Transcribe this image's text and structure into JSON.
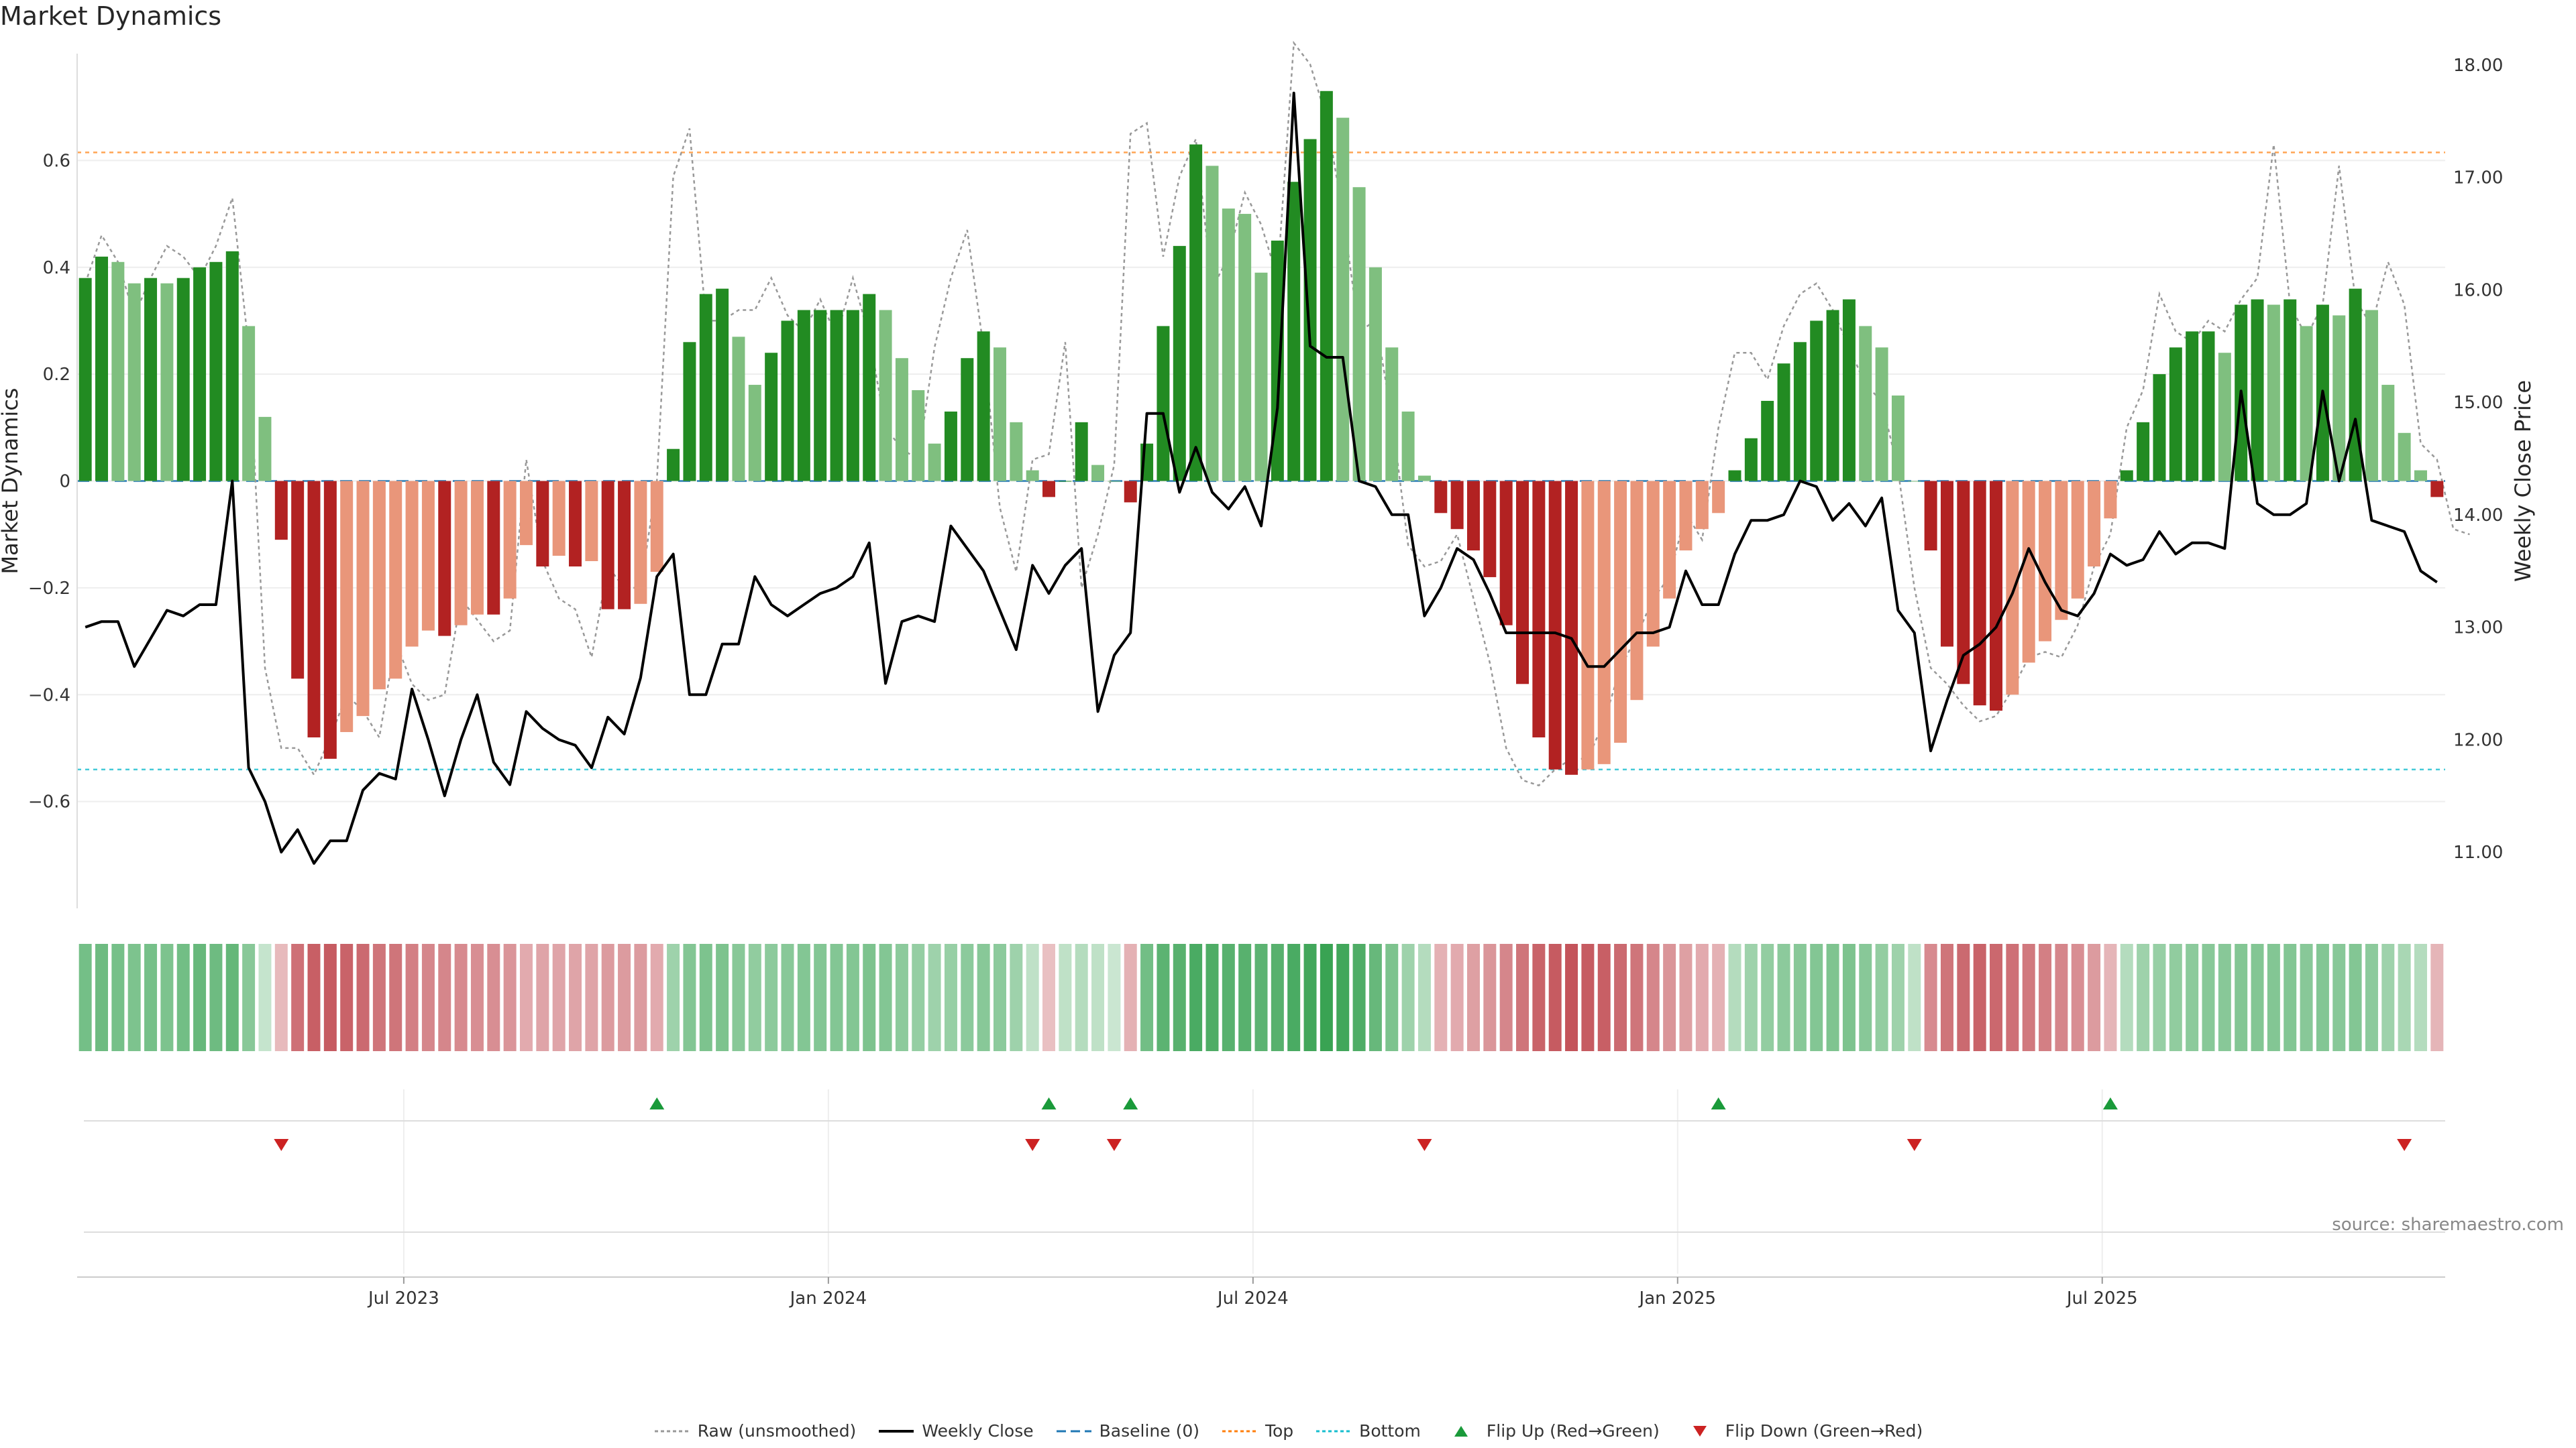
{
  "title": "Market Dynamics",
  "source": "source: sharemaestro.com",
  "colors": {
    "strong_green": "#228B22",
    "light_green": "#7FBF7F",
    "strong_red": "#B22222",
    "light_red": "#E9967A",
    "close_line": "#000000",
    "raw_line": "#999999",
    "baseline": "#1f77b4",
    "top": "#ff7f0e",
    "bottom": "#17becf",
    "flip_up": "#1a9a3a",
    "flip_down": "#cc2222"
  },
  "legend": [
    {
      "key": "raw",
      "label": "Raw (unsmoothed)"
    },
    {
      "key": "close",
      "label": "Weekly Close"
    },
    {
      "key": "baseline",
      "label": "Baseline (0)"
    },
    {
      "key": "top",
      "label": "Top"
    },
    {
      "key": "bottom",
      "label": "Bottom"
    },
    {
      "key": "flip_up",
      "label": "Flip Up (Red→Green)"
    },
    {
      "key": "flip_down",
      "label": "Flip Down (Green→Red)"
    }
  ],
  "chart_data": {
    "type": "bar",
    "ylabel": "Market Dynamics",
    "y2label": "Weekly Close Price",
    "ylim": [
      -0.8,
      0.8
    ],
    "y2lim": [
      10.5,
      18.1
    ],
    "yticks": [
      -0.6,
      -0.4,
      -0.2,
      0,
      0.2,
      0.4,
      0.6
    ],
    "yticklabels": [
      "−0.6",
      "−0.4",
      "−0.2",
      "0",
      "0.2",
      "0.4",
      "0.6"
    ],
    "y2ticks": [
      11,
      12,
      13,
      14,
      15,
      16,
      17,
      18
    ],
    "y2ticklabels": [
      "11.00",
      "12.00",
      "13.00",
      "14.00",
      "15.00",
      "16.00",
      "17.00",
      "18.00"
    ],
    "xticklabels": [
      "Jul 2023",
      "Jan 2024",
      "Jul 2024",
      "Jan 2025",
      "Jul 2025"
    ],
    "xtick_weeks": [
      20,
      46,
      72,
      98,
      124
    ],
    "top_level": 0.615,
    "bottom_level": -0.54,
    "baseline": 0,
    "values": [
      0.38,
      0.42,
      0.41,
      0.37,
      0.38,
      0.37,
      0.38,
      0.4,
      0.41,
      0.43,
      0.29,
      0.12,
      -0.11,
      -0.37,
      -0.48,
      -0.52,
      -0.47,
      -0.44,
      -0.39,
      -0.37,
      -0.31,
      -0.28,
      -0.29,
      -0.27,
      -0.25,
      -0.25,
      -0.22,
      -0.12,
      -0.16,
      -0.14,
      -0.16,
      -0.15,
      -0.24,
      -0.24,
      -0.23,
      -0.17,
      0.06,
      0.26,
      0.35,
      0.36,
      0.27,
      0.18,
      0.24,
      0.3,
      0.32,
      0.32,
      0.32,
      0.32,
      0.35,
      0.32,
      0.23,
      0.17,
      0.07,
      0.13,
      0.23,
      0.28,
      0.25,
      0.11,
      0.02,
      -0.03,
      0.0,
      0.11,
      0.03,
      0.0,
      -0.04,
      0.07,
      0.29,
      0.44,
      0.63,
      0.59,
      0.51,
      0.5,
      0.39,
      0.45,
      0.56,
      0.64,
      0.73,
      0.68,
      0.55,
      0.4,
      0.25,
      0.13,
      0.01,
      -0.06,
      -0.09,
      -0.13,
      -0.18,
      -0.27,
      -0.38,
      -0.48,
      -0.54,
      -0.55,
      -0.54,
      -0.53,
      -0.49,
      -0.41,
      -0.31,
      -0.22,
      -0.13,
      -0.09,
      -0.06,
      0.02,
      0.08,
      0.15,
      0.22,
      0.26,
      0.3,
      0.32,
      0.34,
      0.29,
      0.25,
      0.16,
      0.0,
      -0.13,
      -0.31,
      -0.38,
      -0.42,
      -0.43,
      -0.4,
      -0.34,
      -0.3,
      -0.26,
      -0.22,
      -0.16,
      -0.07,
      0.02,
      0.11,
      0.2,
      0.25,
      0.28,
      0.28,
      0.24,
      0.33,
      0.34,
      0.33,
      0.34,
      0.29,
      0.33,
      0.31,
      0.36,
      0.32,
      0.18,
      0.09,
      0.02,
      -0.03
    ],
    "raw_values": [
      0.37,
      0.46,
      0.41,
      0.31,
      0.38,
      0.44,
      0.42,
      0.38,
      0.44,
      0.53,
      0.25,
      -0.35,
      -0.5,
      -0.5,
      -0.55,
      -0.48,
      -0.4,
      -0.43,
      -0.48,
      -0.3,
      -0.38,
      -0.41,
      -0.4,
      -0.22,
      -0.26,
      -0.3,
      -0.28,
      0.04,
      -0.15,
      -0.22,
      -0.24,
      -0.33,
      -0.16,
      -0.2,
      -0.2,
      0.0,
      0.57,
      0.66,
      0.3,
      0.3,
      0.32,
      0.32,
      0.38,
      0.31,
      0.28,
      0.34,
      0.27,
      0.38,
      0.27,
      0.1,
      0.06,
      0.04,
      0.25,
      0.38,
      0.47,
      0.25,
      -0.05,
      -0.17,
      0.04,
      0.05,
      0.26,
      -0.2,
      -0.1,
      0.03,
      0.65,
      0.67,
      0.42,
      0.57,
      0.64,
      0.36,
      0.42,
      0.54,
      0.48,
      0.38,
      0.82,
      0.78,
      0.68,
      0.5,
      0.28,
      0.3,
      0.12,
      -0.12,
      -0.16,
      -0.15,
      -0.1,
      -0.22,
      -0.34,
      -0.5,
      -0.56,
      -0.57,
      -0.54,
      -0.52,
      -0.52,
      -0.45,
      -0.35,
      -0.29,
      -0.22,
      -0.18,
      -0.06,
      -0.11,
      0.1,
      0.24,
      0.24,
      0.19,
      0.29,
      0.35,
      0.37,
      0.32,
      0.25,
      0.18,
      0.15,
      0.02,
      -0.2,
      -0.35,
      -0.38,
      -0.42,
      -0.45,
      -0.44,
      -0.39,
      -0.33,
      -0.32,
      -0.33,
      -0.27,
      -0.16,
      -0.1,
      0.1,
      0.17,
      0.35,
      0.28,
      0.26,
      0.3,
      0.28,
      0.34,
      0.38,
      0.63,
      0.33,
      0.27,
      0.33,
      0.59,
      0.34,
      0.29,
      0.41,
      0.33,
      0.07,
      0.04,
      -0.09,
      -0.1
    ],
    "close_values": [
      13.0,
      13.05,
      13.05,
      12.65,
      12.9,
      13.15,
      13.1,
      13.2,
      13.2,
      14.3,
      11.75,
      11.45,
      11.0,
      11.2,
      10.9,
      11.1,
      11.1,
      11.55,
      11.7,
      11.65,
      12.45,
      12.0,
      11.5,
      12.0,
      12.4,
      11.8,
      11.6,
      12.25,
      12.1,
      12.0,
      11.95,
      11.75,
      12.2,
      12.05,
      12.55,
      13.45,
      13.65,
      12.4,
      12.4,
      12.85,
      12.85,
      13.45,
      13.2,
      13.1,
      13.2,
      13.3,
      13.35,
      13.45,
      13.75,
      12.5,
      13.05,
      13.1,
      13.05,
      13.9,
      13.7,
      13.5,
      13.15,
      12.8,
      13.55,
      13.3,
      13.55,
      13.7,
      12.25,
      12.75,
      12.95,
      14.9,
      14.9,
      14.2,
      14.6,
      14.2,
      14.05,
      14.25,
      13.9,
      14.95,
      17.75,
      15.5,
      15.4,
      15.4,
      14.3,
      14.25,
      14.0,
      14.0,
      13.1,
      13.35,
      13.7,
      13.6,
      13.3,
      12.95,
      12.95,
      12.95,
      12.95,
      12.9,
      12.65,
      12.65,
      12.8,
      12.95,
      12.95,
      13.0,
      13.5,
      13.2,
      13.2,
      13.65,
      13.95,
      13.95,
      14.0,
      14.3,
      14.25,
      13.95,
      14.1,
      13.9,
      14.15,
      13.15,
      12.95,
      11.9,
      12.35,
      12.75,
      12.85,
      13.0,
      13.3,
      13.7,
      13.4,
      13.15,
      13.1,
      13.3,
      13.65,
      13.55,
      13.6,
      13.85,
      13.65,
      13.75,
      13.75,
      13.7,
      15.1,
      14.1,
      14.0,
      14.0,
      14.1,
      15.1,
      14.3,
      14.85,
      13.95,
      13.9,
      13.85,
      13.5,
      13.4
    ],
    "heat_values": [
      0.49,
      0.52,
      0.48,
      0.45,
      0.48,
      0.45,
      0.5,
      0.55,
      0.52,
      0.56,
      0.4,
      0.12,
      -0.18,
      -0.52,
      -0.6,
      -0.62,
      -0.58,
      -0.55,
      -0.5,
      -0.5,
      -0.45,
      -0.42,
      -0.42,
      -0.4,
      -0.38,
      -0.38,
      -0.35,
      -0.25,
      -0.28,
      -0.28,
      -0.28,
      -0.28,
      -0.32,
      -0.32,
      -0.32,
      -0.25,
      0.3,
      0.42,
      0.45,
      0.45,
      0.4,
      0.36,
      0.38,
      0.4,
      0.42,
      0.42,
      0.42,
      0.42,
      0.45,
      0.42,
      0.38,
      0.34,
      0.3,
      0.33,
      0.38,
      0.4,
      0.38,
      0.3,
      0.15,
      -0.15,
      0.15,
      0.2,
      0.15,
      0.1,
      -0.22,
      0.5,
      0.6,
      0.62,
      0.68,
      0.66,
      0.62,
      0.62,
      0.6,
      0.62,
      0.68,
      0.72,
      0.76,
      0.72,
      0.66,
      0.55,
      0.45,
      0.3,
      0.2,
      -0.22,
      -0.25,
      -0.3,
      -0.35,
      -0.42,
      -0.5,
      -0.58,
      -0.62,
      -0.65,
      -0.62,
      -0.6,
      -0.55,
      -0.5,
      -0.42,
      -0.35,
      -0.3,
      -0.25,
      -0.22,
      0.2,
      0.3,
      0.35,
      0.38,
      0.4,
      0.42,
      0.44,
      0.45,
      0.4,
      0.35,
      0.3,
      0.15,
      -0.4,
      -0.5,
      -0.55,
      -0.58,
      -0.56,
      -0.52,
      -0.48,
      -0.45,
      -0.42,
      -0.38,
      -0.32,
      -0.2,
      0.2,
      0.3,
      0.33,
      0.36,
      0.38,
      0.4,
      0.4,
      0.42,
      0.42,
      0.42,
      0.42,
      0.4,
      0.42,
      0.4,
      0.42,
      0.38,
      0.3,
      0.25,
      0.2,
      -0.2
    ],
    "flip_up_weeks": [
      35,
      59,
      64,
      100,
      124
    ],
    "flip_down_weeks": [
      12,
      58,
      63,
      82,
      112,
      142
    ]
  }
}
